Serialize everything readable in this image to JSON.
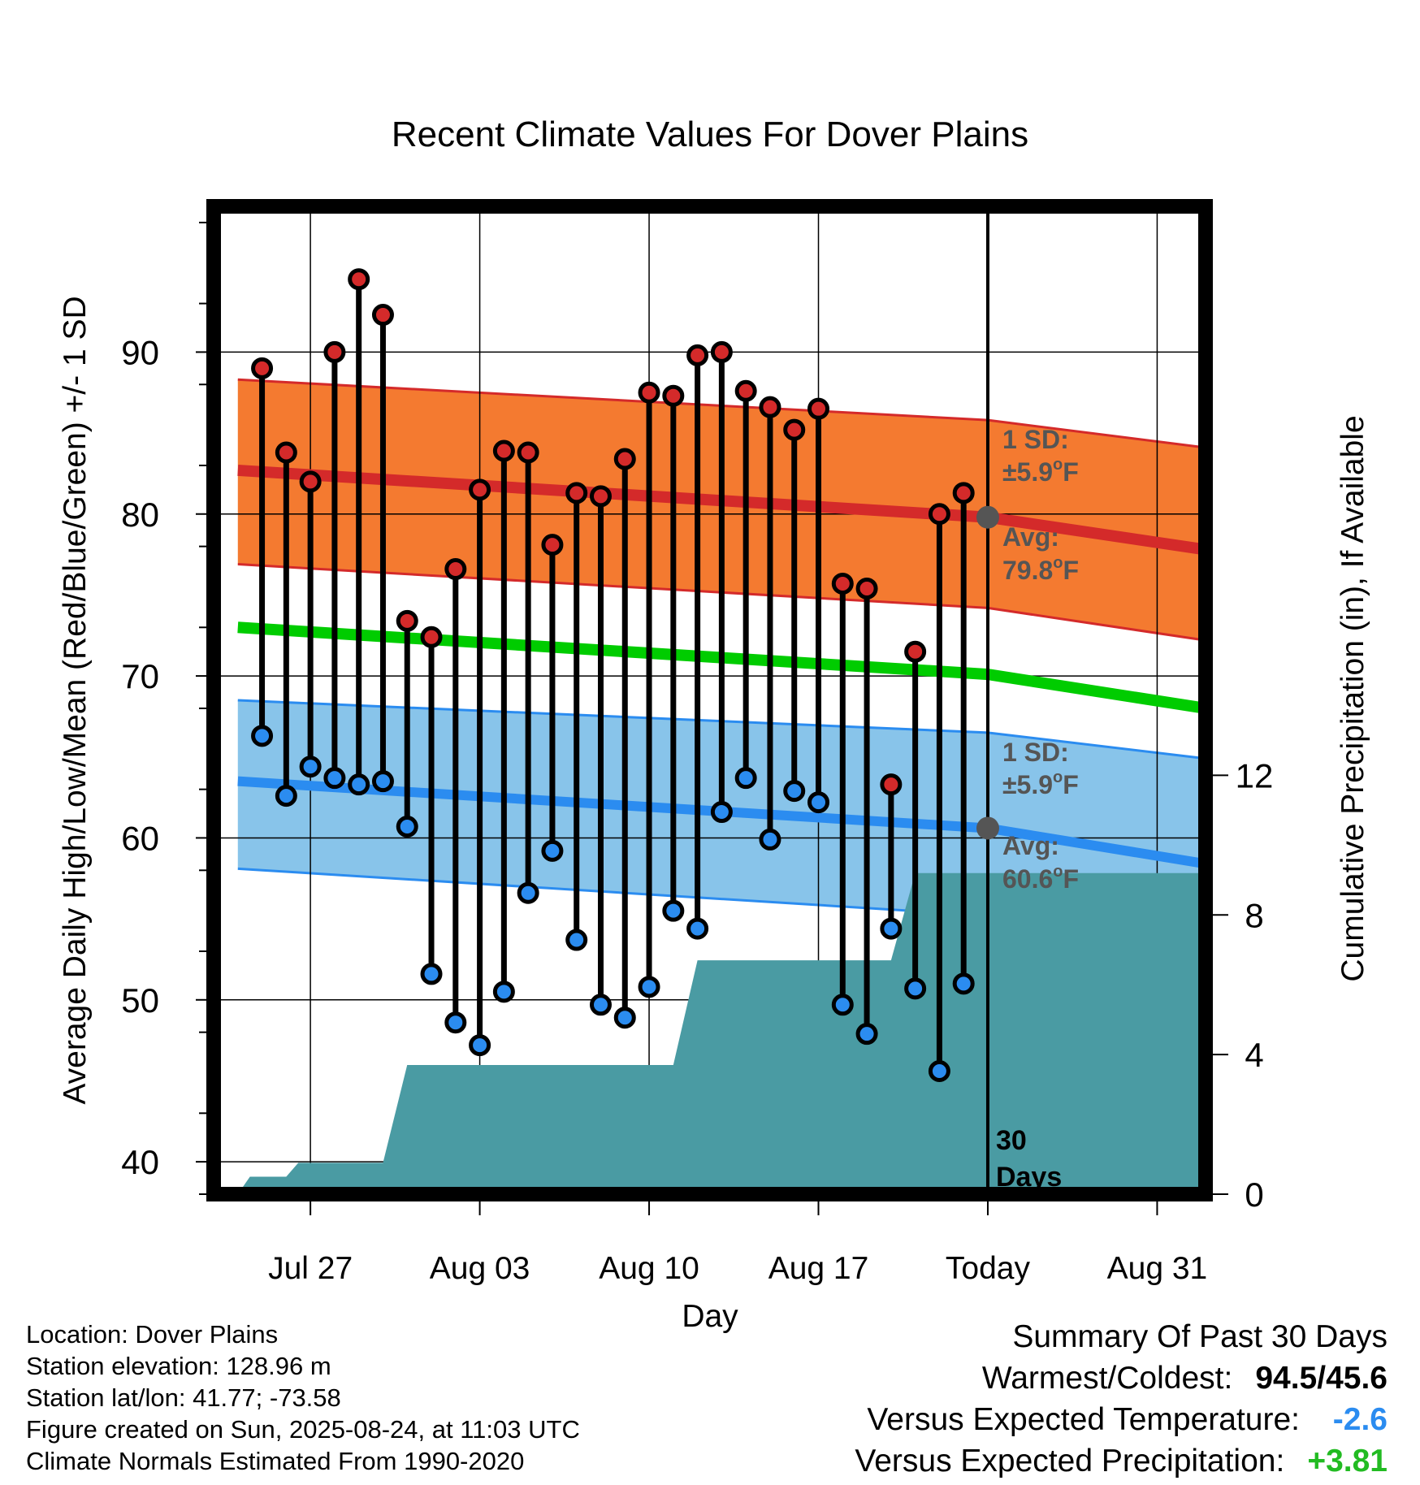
{
  "colors": {
    "high_band": "#f47a30",
    "high_edge": "#d42a2a",
    "high_mean_line": "#d42a2a",
    "low_band": "#88c4ea",
    "low_edge": "#2b8cf0",
    "low_mean_line": "#2b8cf0",
    "mean_line": "#00cc00",
    "precip_fill": "#4a9ba3",
    "high_dot": "#d42a2a",
    "low_dot": "#2b8cf0",
    "avg_marker": "#555555",
    "annotation_text": "#555555",
    "temp_anomaly": "#2b8cf0",
    "precip_anomaly": "#22bb22"
  },
  "chart_data": {
    "type": "line",
    "title": "Recent Climate Values For Dover Plains",
    "xlabel": "Day",
    "ylabel": "Average Daily High/Low/Mean (Red/Blue/Green) +/- 1 SD",
    "ylabel_right": "Cumulative Precipitation (in), If Available",
    "ylim": [
      38,
      99
    ],
    "ylim_right": [
      0,
      28.3
    ],
    "xlim": [
      "2025-07-23",
      "2025-09-02"
    ],
    "x_ticks": [
      {
        "date": "2025-07-27",
        "label": "Jul 27"
      },
      {
        "date": "2025-08-03",
        "label": "Aug 03"
      },
      {
        "date": "2025-08-10",
        "label": "Aug 10"
      },
      {
        "date": "2025-08-17",
        "label": "Aug 17"
      },
      {
        "date": "2025-08-24",
        "label": "Today"
      },
      {
        "date": "2025-08-31",
        "label": "Aug 31"
      }
    ],
    "y_ticks": [
      40,
      50,
      60,
      70,
      80,
      90
    ],
    "y_ticks_right": [
      0,
      4,
      8,
      12
    ],
    "grid": true,
    "daily_observations": {
      "dates": [
        "2025-07-25",
        "2025-07-26",
        "2025-07-27",
        "2025-07-28",
        "2025-07-29",
        "2025-07-30",
        "2025-07-31",
        "2025-08-01",
        "2025-08-02",
        "2025-08-03",
        "2025-08-04",
        "2025-08-05",
        "2025-08-06",
        "2025-08-07",
        "2025-08-08",
        "2025-08-09",
        "2025-08-10",
        "2025-08-11",
        "2025-08-12",
        "2025-08-13",
        "2025-08-14",
        "2025-08-15",
        "2025-08-16",
        "2025-08-17",
        "2025-08-18",
        "2025-08-19",
        "2025-08-20",
        "2025-08-21",
        "2025-08-22",
        "2025-08-23"
      ],
      "highs": [
        89.0,
        83.8,
        82.0,
        90.0,
        94.5,
        92.3,
        73.4,
        72.4,
        76.6,
        81.5,
        83.9,
        83.8,
        78.1,
        81.3,
        81.1,
        83.4,
        87.5,
        87.3,
        89.8,
        90.0,
        87.6,
        86.6,
        85.2,
        86.5,
        75.7,
        75.4,
        63.3,
        71.5,
        80.0,
        81.3
      ],
      "lows": [
        66.3,
        62.6,
        64.4,
        63.7,
        63.3,
        63.5,
        60.7,
        51.6,
        48.6,
        47.2,
        50.5,
        56.6,
        59.2,
        53.7,
        49.7,
        48.9,
        50.8,
        55.5,
        54.4,
        61.6,
        63.7,
        59.9,
        62.9,
        62.2,
        49.7,
        47.9,
        54.4,
        50.7,
        45.6,
        51.0
      ]
    },
    "normals": {
      "dates": [
        "2025-07-24",
        "2025-08-24",
        "2025-09-02"
      ],
      "high_mean": [
        82.7,
        79.8,
        77.8
      ],
      "high_upper": [
        88.3,
        85.8,
        84.1
      ],
      "high_lower": [
        76.9,
        74.2,
        72.2
      ],
      "low_mean": [
        63.5,
        60.6,
        58.4
      ],
      "low_upper": [
        68.5,
        66.5,
        64.9
      ],
      "low_lower": [
        58.1,
        55.2,
        52.8
      ],
      "daily_mean": [
        73.0,
        70.1,
        68.0
      ]
    },
    "cumulative_precip": {
      "dates": [
        "2025-07-24",
        "2025-07-24.5",
        "2025-07-25",
        "2025-07-26",
        "2025-07-26.5",
        "2025-07-30",
        "2025-07-31",
        "2025-08-11",
        "2025-08-12",
        "2025-08-20",
        "2025-08-21",
        "2025-08-24",
        "2025-09-02"
      ],
      "values": [
        0.0,
        0.5,
        0.5,
        0.5,
        0.9,
        0.9,
        3.7,
        3.7,
        6.7,
        6.7,
        9.2,
        9.2,
        9.2
      ]
    },
    "annotations": {
      "high_sd_label": "1 SD:",
      "high_sd_value": "±5.9°F",
      "high_avg_label": "Avg:",
      "high_avg_value": "79.8°F",
      "low_sd_label": "1 SD:",
      "low_sd_value": "±5.9°F",
      "low_avg_label": "Avg:",
      "low_avg_value": "60.6°F",
      "period_count": "30",
      "period_unit": "Days"
    }
  },
  "info": {
    "location": "Location: Dover Plains",
    "elevation": "Station elevation: 128.96 m",
    "latlon": "Station lat/lon: 41.77; -73.58",
    "created": "Figure created on Sun, 2025-08-24, at 11:03 UTC",
    "normals": "Climate Normals Estimated From 1990-2020"
  },
  "summary": {
    "heading": "Summary Of Past 30 Days",
    "warmest_label": "Warmest/Coldest:",
    "warmest_value": "94.5/45.6",
    "temp_label": "Versus Expected Temperature:",
    "temp_value": "-2.6",
    "precip_label": "Versus Expected Precipitation:",
    "precip_value": "+3.81"
  }
}
